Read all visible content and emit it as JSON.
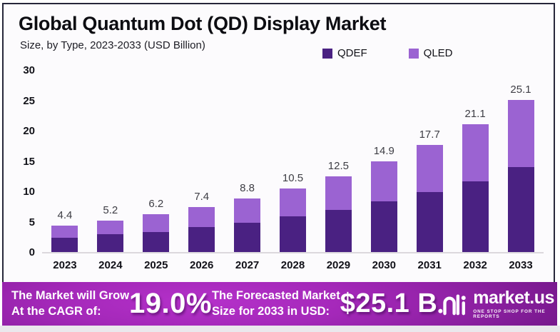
{
  "header": {
    "title": "Global Quantum Dot (QD) Display Market",
    "subtitle": "Size, by Type, 2023-2033 (USD Billion)"
  },
  "chart_data": {
    "type": "bar",
    "stacked": true,
    "title": "Global Quantum Dot (QD) Display Market",
    "subtitle": "Size, by Type, 2023-2033 (USD Billion)",
    "categories": [
      "2023",
      "2024",
      "2025",
      "2026",
      "2027",
      "2028",
      "2029",
      "2030",
      "2031",
      "2032",
      "2033"
    ],
    "series": [
      {
        "name": "QDEF",
        "color": "#4a2182",
        "values": [
          2.4,
          2.9,
          3.3,
          4.1,
          4.8,
          5.9,
          7.0,
          8.3,
          9.9,
          11.7,
          14.0
        ]
      },
      {
        "name": "QLED",
        "color": "#9b63d2",
        "values": [
          2.0,
          2.3,
          2.9,
          3.3,
          4.0,
          4.6,
          5.5,
          6.6,
          7.8,
          9.4,
          11.1
        ]
      }
    ],
    "total_labels": [
      "4.4",
      "5.2",
      "6.2",
      "7.4",
      "8.8",
      "10.5",
      "12.5",
      "14.9",
      "17.7",
      "21.1",
      "25.1"
    ],
    "y_ticks": [
      30,
      25,
      20,
      15,
      10,
      5,
      0
    ],
    "ylim": [
      0,
      30
    ],
    "xlabel": "",
    "ylabel": "",
    "grid": false,
    "legend_position": "top-right"
  },
  "legend": [
    {
      "label": "QDEF",
      "color": "#4a2182"
    },
    {
      "label": "QLED",
      "color": "#9b63d2"
    }
  ],
  "banner": {
    "cagr_line1": "The Market will Grow",
    "cagr_line2": "At the CAGR of:",
    "cagr_value": "19.0%",
    "forecast_line1": "The Forecasted Market",
    "forecast_line2": "Size for 2033 in USD:",
    "forecast_value": "$25.1 B",
    "logo_text": "market.us",
    "logo_tagline": "ONE STOP SHOP FOR THE REPORTS"
  },
  "colors": {
    "qdef": "#4a2182",
    "qled": "#9b63d2",
    "banner_center": "#b531ca",
    "banner_edge": "#5a0f6e",
    "panel_border": "#26263a"
  }
}
